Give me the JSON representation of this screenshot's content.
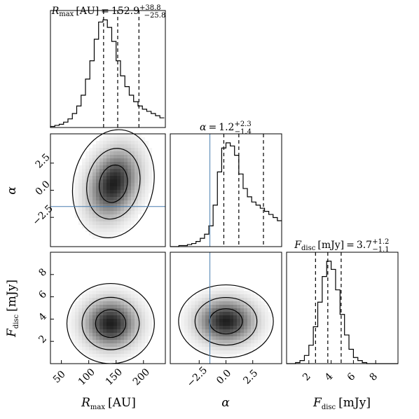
{
  "chart_data": {
    "type": "corner",
    "parameters": [
      {
        "key": "rmax",
        "label_main": "R",
        "label_sub": "max",
        "label_unit": "[AU]",
        "range": [
          30,
          240
        ],
        "ticks": [
          50,
          100,
          150,
          200
        ],
        "tick_labels": [
          "50",
          "100",
          "150",
          "200"
        ],
        "title_value": "152.9",
        "title_plus": "+38.8",
        "title_minus": "−25.8",
        "quantiles": [
          127.1,
          152.9,
          191.7
        ]
      },
      {
        "key": "alpha",
        "label_main": "α",
        "label_sub": "",
        "label_unit": "",
        "range": [
          -5.2,
          5.2
        ],
        "ticks": [
          -2.5,
          0.0,
          2.5
        ],
        "tick_labels": [
          "−2.5",
          "0.0",
          "2.5"
        ],
        "title_value": "1.2",
        "title_plus": "+2.3",
        "title_minus": "−1.4",
        "quantiles": [
          -0.2,
          1.2,
          3.5
        ],
        "truth": -1.5
      },
      {
        "key": "fdisc",
        "label_main": "F",
        "label_sub": "disc",
        "label_unit": "[mJy]",
        "range": [
          0,
          10
        ],
        "ticks": [
          2,
          4,
          6,
          8
        ],
        "tick_labels": [
          "2",
          "4",
          "6",
          "8"
        ],
        "title_value": "3.7",
        "title_plus": "+1.2",
        "title_minus": "−1.1",
        "quantiles": [
          2.6,
          3.7,
          4.9
        ]
      }
    ],
    "histograms": {
      "rmax": {
        "bins": [
          30,
          38,
          46,
          54,
          62,
          70,
          78,
          86,
          94,
          102,
          110,
          118,
          126,
          134,
          142,
          150,
          158,
          166,
          174,
          182,
          190,
          198,
          206,
          214,
          222,
          230,
          238
        ],
        "counts": [
          0.01,
          0.02,
          0.03,
          0.05,
          0.08,
          0.13,
          0.2,
          0.3,
          0.45,
          0.62,
          0.82,
          0.98,
          1.0,
          0.93,
          0.8,
          0.62,
          0.48,
          0.38,
          0.3,
          0.24,
          0.2,
          0.17,
          0.15,
          0.13,
          0.11,
          0.09
        ]
      },
      "alpha": {
        "bins": [
          -5.2,
          -4.8,
          -4.4,
          -4.0,
          -3.6,
          -3.2,
          -2.8,
          -2.4,
          -2.0,
          -1.6,
          -1.2,
          -0.8,
          -0.4,
          0.0,
          0.4,
          0.8,
          1.2,
          1.6,
          2.0,
          2.4,
          2.8,
          3.2,
          3.6,
          4.0,
          4.4,
          4.8,
          5.2
        ],
        "counts": [
          0.0,
          0.0,
          0.01,
          0.01,
          0.02,
          0.03,
          0.05,
          0.08,
          0.12,
          0.2,
          0.4,
          0.72,
          0.95,
          1.0,
          0.97,
          0.88,
          0.7,
          0.56,
          0.48,
          0.43,
          0.4,
          0.37,
          0.34,
          0.31,
          0.28,
          0.25
        ]
      },
      "fdisc": {
        "bins": [
          0.0,
          0.4,
          0.8,
          1.2,
          1.6,
          2.0,
          2.4,
          2.8,
          3.2,
          3.6,
          4.0,
          4.4,
          4.8,
          5.2,
          5.6,
          6.0,
          6.4,
          6.8,
          7.2,
          7.6,
          8.0,
          8.4,
          8.8,
          9.2,
          9.6,
          10.0
        ],
        "counts": [
          0.0,
          0.0,
          0.01,
          0.03,
          0.08,
          0.18,
          0.36,
          0.6,
          0.85,
          1.0,
          0.92,
          0.72,
          0.48,
          0.28,
          0.14,
          0.06,
          0.03,
          0.01,
          0.0,
          0.0,
          0.0,
          0.0,
          0.0,
          0.0,
          0.0
        ]
      }
    },
    "density_peaks": {
      "alpha_vs_rmax": {
        "x": 145,
        "y": 0.6
      },
      "fdisc_vs_rmax": {
        "x": 140,
        "y": 3.6
      },
      "fdisc_vs_alpha": {
        "x": 0.0,
        "y": 3.8
      }
    }
  }
}
